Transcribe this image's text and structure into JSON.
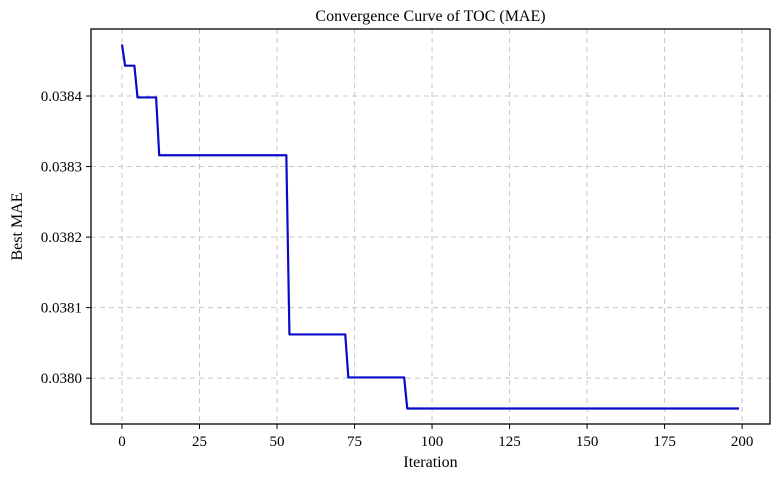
{
  "chart_data": {
    "type": "line",
    "title": "Convergence Curve of TOC (MAE)",
    "xlabel": "Iteration",
    "ylabel": "Best MAE",
    "xlim": [
      -10,
      209
    ],
    "ylim": [
      0.037935,
      0.038495
    ],
    "xticks": [
      0,
      25,
      50,
      75,
      100,
      125,
      150,
      175,
      200
    ],
    "yticks": [
      0.038,
      0.0381,
      0.0382,
      0.0383,
      0.0384
    ],
    "ytick_labels": [
      "0.0380",
      "0.0381",
      "0.0382",
      "0.0383",
      "0.0384"
    ],
    "grid": true,
    "series": [
      {
        "color": "#0a0ac8",
        "x": [
          0,
          1,
          4,
          5,
          11,
          12,
          53,
          54,
          72,
          73,
          91,
          92,
          199
        ],
        "y": [
          0.038473,
          0.038443,
          0.038443,
          0.038398,
          0.038398,
          0.038316,
          0.038316,
          0.038062,
          0.038062,
          0.038001,
          0.038001,
          0.037957,
          0.037957
        ]
      }
    ]
  }
}
